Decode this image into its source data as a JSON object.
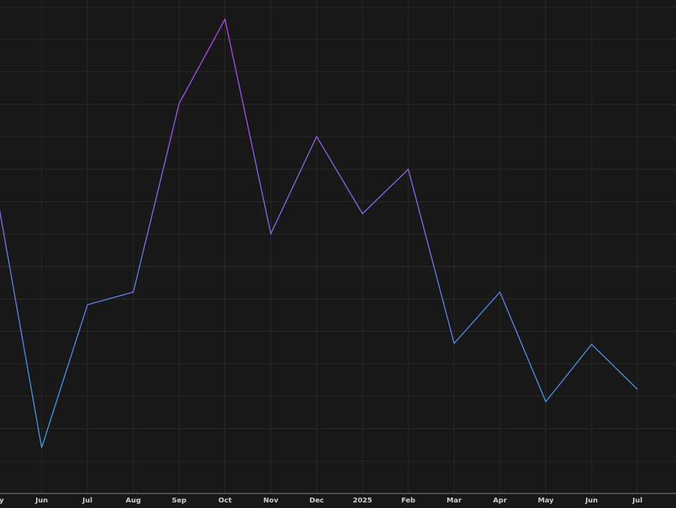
{
  "chart_data": {
    "type": "line",
    "categories": [
      "May",
      "Jun",
      "Jul",
      "Aug",
      "Sep",
      "Oct",
      "Nov",
      "Dec",
      "2025",
      "Feb",
      "Mar",
      "Apr",
      "May",
      "Jun",
      "Jul"
    ],
    "values": [
      9.4,
      1.41,
      5.82,
      6.21,
      12.03,
      14.63,
      8.01,
      11.01,
      8.63,
      10.0,
      4.63,
      6.21,
      2.83,
      4.6,
      3.21
    ],
    "color_gradient": [
      "#2aa6e6",
      "#b83de6"
    ],
    "ylim": [
      0,
      15.22
    ],
    "yticks": [
      1,
      2,
      3,
      4,
      5,
      6,
      7,
      8,
      9,
      10,
      11,
      12,
      13,
      14,
      15
    ],
    "grid": true
  }
}
